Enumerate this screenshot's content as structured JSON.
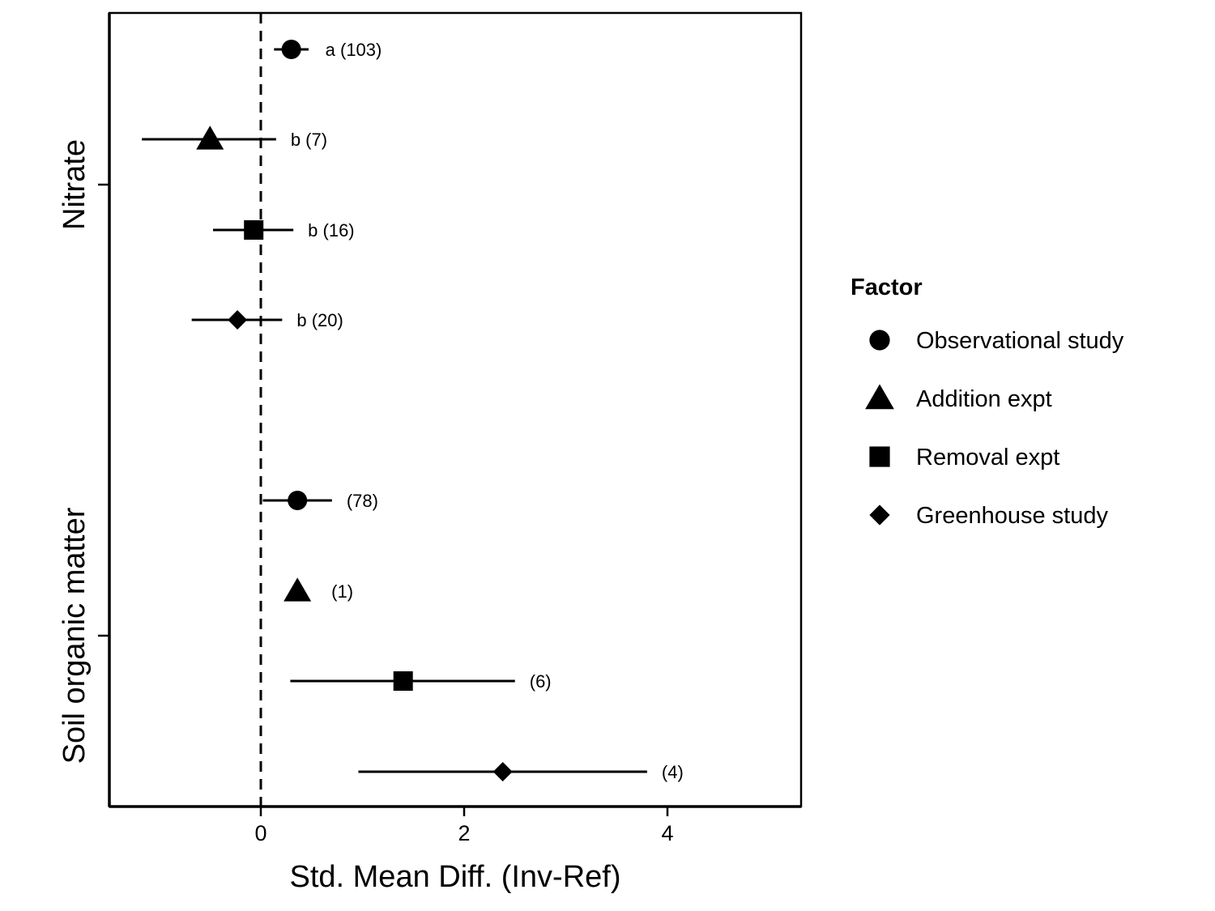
{
  "chart_data": {
    "type": "scatter",
    "xlabel": "Std. Mean Diff. (Inv-Ref)",
    "ylabel": "",
    "xlim": [
      -1.5,
      5.3
    ],
    "x_ticks": [
      0,
      2,
      4
    ],
    "reference_line": {
      "x": 0,
      "style": "dashed"
    },
    "groups": [
      "Nitrate",
      "Soil organic matter"
    ],
    "legend": {
      "title": "Factor",
      "position": "right"
    },
    "grid": false,
    "series": [
      {
        "name": "Observational study",
        "marker": "circle"
      },
      {
        "name": "Addition expt",
        "marker": "triangle"
      },
      {
        "name": "Removal expt",
        "marker": "square"
      },
      {
        "name": "Greenhouse study",
        "marker": "diamond"
      }
    ],
    "points": [
      {
        "group": "Nitrate",
        "series": "Observational study",
        "mean": 0.3,
        "lower": 0.13,
        "upper": 0.47,
        "label": "a (103)"
      },
      {
        "group": "Nitrate",
        "series": "Addition expt",
        "mean": -0.5,
        "lower": -1.17,
        "upper": 0.15,
        "label": "b (7)"
      },
      {
        "group": "Nitrate",
        "series": "Removal expt",
        "mean": -0.07,
        "lower": -0.47,
        "upper": 0.32,
        "label": "b (16)"
      },
      {
        "group": "Nitrate",
        "series": "Greenhouse study",
        "mean": -0.23,
        "lower": -0.68,
        "upper": 0.21,
        "label": "b (20)"
      },
      {
        "group": "Soil organic matter",
        "series": "Observational study",
        "mean": 0.36,
        "lower": 0.02,
        "upper": 0.7,
        "label": "(78)"
      },
      {
        "group": "Soil organic matter",
        "series": "Addition expt",
        "mean": 0.36,
        "lower": null,
        "upper": null,
        "label": "(1)"
      },
      {
        "group": "Soil organic matter",
        "series": "Removal expt",
        "mean": 1.4,
        "lower": 0.29,
        "upper": 2.5,
        "label": "(6)"
      },
      {
        "group": "Soil organic matter",
        "series": "Greenhouse study",
        "mean": 2.38,
        "lower": 0.96,
        "upper": 3.8,
        "label": "(4)"
      }
    ]
  }
}
